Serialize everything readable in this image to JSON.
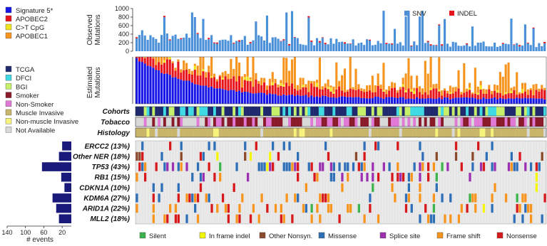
{
  "chart_data": [
    {
      "type": "bar",
      "panel": "observed",
      "ylabel": "Observed Mutations",
      "ylim": [
        0,
        1000
      ],
      "yticks": [
        0,
        200,
        400,
        600,
        800,
        1000
      ],
      "legend_position": "top-right",
      "stacked": true,
      "sample_count": 148,
      "series": [
        {
          "name": "SNV",
          "color": "#4a90d9"
        },
        {
          "name": "INDEL",
          "color": "#e8141c"
        }
      ]
    },
    {
      "type": "bar",
      "panel": "estimated",
      "ylabel": "Estimated Mutations",
      "stacked": true,
      "sorted_by": "Signature 5*",
      "series": [
        {
          "name": "Signature 5*",
          "color": "#1616e6"
        },
        {
          "name": "APOBEC2",
          "color": "#e8141c"
        },
        {
          "name": "C>T CpG",
          "color": "#f0e41e"
        },
        {
          "name": "APOBEC1",
          "color": "#f7941d"
        }
      ]
    },
    {
      "type": "heatmap",
      "panel": "annotations",
      "rows": [
        "Cohorts",
        "Tobacco",
        "Histology"
      ],
      "legend": [
        {
          "name": "TCGA",
          "color": "#1f2a6e"
        },
        {
          "name": "DFCI",
          "color": "#3fd9e3"
        },
        {
          "name": "BGI",
          "color": "#c6f06a"
        },
        {
          "name": "Smoker",
          "color": "#8a1a2a"
        },
        {
          "name": "Non-Smoker",
          "color": "#e07ad6"
        },
        {
          "name": "Muscle Invasive",
          "color": "#c8b56a"
        },
        {
          "name": "Non-muscle Invasive",
          "color": "#f6f27c"
        },
        {
          "name": "Not Available",
          "color": "#d9d9d9"
        }
      ]
    },
    {
      "type": "heatmap",
      "panel": "oncoprint",
      "genes": [
        {
          "label": "ERCC2 (13%)",
          "events": 20
        },
        {
          "label": "Other NER (18%)",
          "events": 27
        },
        {
          "label": "TP53 (43%)",
          "events": 64
        },
        {
          "label": "RB1 (15%)",
          "events": 22
        },
        {
          "label": "CDKN1A (10%)",
          "events": 15
        },
        {
          "label": "KDM6A (27%)",
          "events": 41
        },
        {
          "label": "ARID1A (22%)",
          "events": 33
        },
        {
          "label": "MLL2 (18%)",
          "events": 27
        }
      ],
      "mutation_types": [
        {
          "name": "Silent",
          "color": "#3cb44b"
        },
        {
          "name": "In frame indel",
          "color": "#f5f50a"
        },
        {
          "name": "Other Nonsyn.",
          "color": "#8b4a2b"
        },
        {
          "name": "Missense",
          "color": "#2e6fb7"
        },
        {
          "name": "Splice site",
          "color": "#9b30b0"
        },
        {
          "name": "Frame shift",
          "color": "#f7941d"
        },
        {
          "name": "Nonsense",
          "color": "#d7191c"
        }
      ],
      "background_color": "#e6e6e6"
    },
    {
      "type": "bar",
      "panel": "events",
      "orientation": "horizontal",
      "xlabel": "# events",
      "xticks": [
        140,
        100,
        60,
        20
      ],
      "xlim": [
        0,
        140
      ],
      "reversed": true,
      "categories": [
        "ERCC2 (13%)",
        "Other NER (18%)",
        "TP53 (43%)",
        "RB1 (15%)",
        "CDKN1A (10%)",
        "KDM6A (27%)",
        "ARID1A (22%)",
        "MLL2 (18%)"
      ],
      "values": [
        20,
        27,
        64,
        22,
        15,
        41,
        33,
        27
      ],
      "color": "#1a1a7a"
    }
  ],
  "labels": {
    "observed_ylabel_1": "Observed",
    "observed_ylabel_2": "Mutations",
    "estimated_ylabel_1": "Estimated",
    "estimated_ylabel_2": "Mutations",
    "events_xlabel": "# events"
  }
}
